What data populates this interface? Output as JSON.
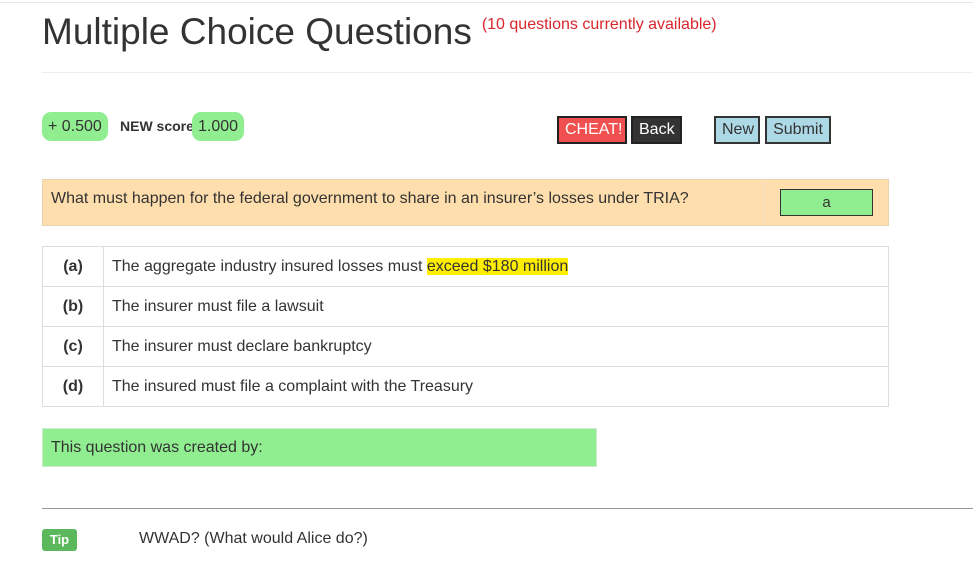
{
  "header": {
    "title": "Multiple Choice Questions",
    "availability_note": "(10 questions currently available)"
  },
  "score": {
    "bonus": "+ 0.500",
    "new_score_label": "NEW score",
    "new_score_value": "1.000"
  },
  "toolbar": {
    "cheat_label": "CHEAT!",
    "back_label": "Back",
    "new_label": "New",
    "submit_label": "Submit"
  },
  "question": {
    "text": "What must happen for the federal government to share in an insurer’s losses under TRIA?",
    "answer_value": "a"
  },
  "choices": [
    {
      "letter": "(a)",
      "text_before": "The aggregate industry insured losses must ",
      "highlight": "exceed $180 million"
    },
    {
      "letter": "(b)",
      "text_before": "The insurer must file a lawsuit",
      "highlight": ""
    },
    {
      "letter": "(c)",
      "text_before": "The insurer must declare bankruptcy",
      "highlight": ""
    },
    {
      "letter": "(d)",
      "text_before": "The insured must file a complaint with the Treasury",
      "highlight": ""
    }
  ],
  "creator": {
    "text": "This question was created by:"
  },
  "tip": {
    "badge": "Tip",
    "text": "WWAD? (What would Alice do?)"
  },
  "colors": {
    "green": "#90ee90",
    "question_bg": "#ffdead",
    "cheat_red": "#f0504f",
    "button_blue": "#add8e6",
    "highlight_yellow": "#ffee00",
    "tip_green": "#5cb85c",
    "note_red": "#d9262c"
  }
}
